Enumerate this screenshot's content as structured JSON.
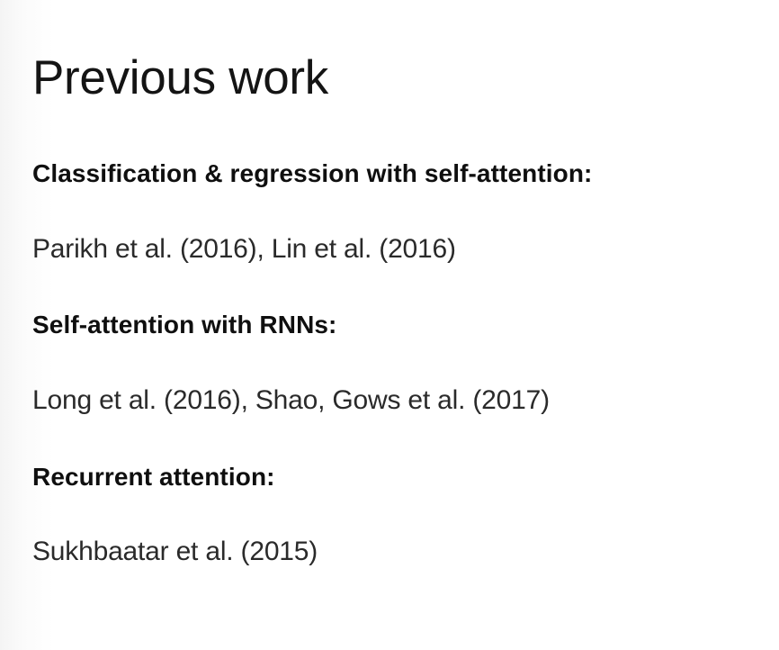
{
  "slide": {
    "title": "Previous work",
    "sections": [
      {
        "heading": "Classification & regression with self-attention:",
        "references": "Parikh et al. (2016), Lin et al. (2016)"
      },
      {
        "heading": "Self-attention with RNNs:",
        "references": "Long et al. (2016), Shao, Gows et al. (2017)"
      },
      {
        "heading": "Recurrent attention:",
        "references": "Sukhbaatar et al. (2015)"
      }
    ]
  }
}
